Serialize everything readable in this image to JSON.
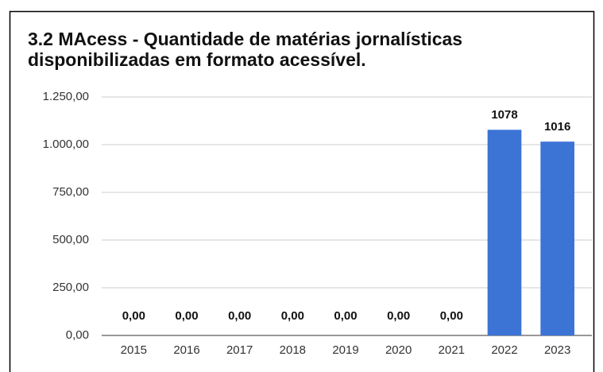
{
  "chart_data": {
    "type": "bar",
    "title": "3.2 MAcess - Quantidade de matérias jornalísticas disponibilizadas em formato acessível.",
    "categories": [
      "2015",
      "2016",
      "2017",
      "2018",
      "2019",
      "2020",
      "2021",
      "2022",
      "2023"
    ],
    "values": [
      0,
      0,
      0,
      0,
      0,
      0,
      0,
      1078,
      1016
    ],
    "value_labels": [
      "0,00",
      "0,00",
      "0,00",
      "0,00",
      "0,00",
      "0,00",
      "0,00",
      "1078",
      "1016"
    ],
    "color": "#3c74d6",
    "ylim": [
      0,
      1250
    ],
    "yticks": [
      {
        "value": 0,
        "label": "0,00"
      },
      {
        "value": 250,
        "label": "250,00"
      },
      {
        "value": 500,
        "label": "500,00"
      },
      {
        "value": 750,
        "label": "750,00"
      },
      {
        "value": 1000,
        "label": "1.000,00"
      },
      {
        "value": 1250,
        "label": "1.250,00"
      }
    ],
    "grid": true
  }
}
